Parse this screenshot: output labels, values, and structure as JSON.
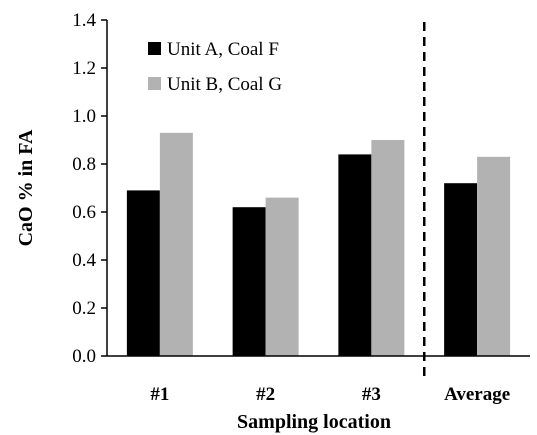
{
  "chart_data": {
    "type": "bar",
    "categories": [
      "#1",
      "#2",
      "#3",
      "Average"
    ],
    "series": [
      {
        "name": "Unit A, Coal F",
        "values": [
          0.69,
          0.62,
          0.84,
          0.72
        ],
        "color": "#000000"
      },
      {
        "name": "Unit B, Coal G",
        "values": [
          0.93,
          0.66,
          0.9,
          0.83
        ],
        "color": "#b2b2b2"
      }
    ],
    "xlabel": "Sampling location",
    "ylabel": "CaO % in FA",
    "ylim": [
      0,
      1.4
    ],
    "yticks": [
      "0.0",
      "0.2",
      "0.4",
      "0.6",
      "0.8",
      "1.0",
      "1.2",
      "1.4"
    ],
    "grid": false,
    "legend_position": "top-left",
    "separator_before_category": "Average"
  }
}
